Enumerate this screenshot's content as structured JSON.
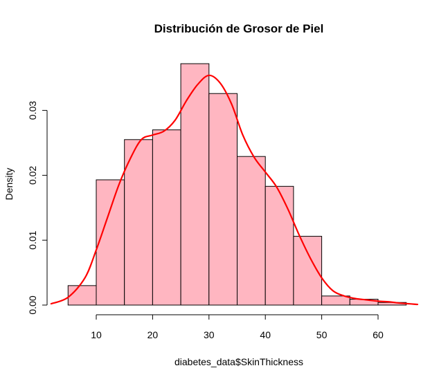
{
  "chart_data": {
    "type": "bar",
    "title": "Distribución de Grosor de Piel",
    "xlabel": "diabetes_data$SkinThickness",
    "ylabel": "Density",
    "bins": [
      {
        "x0": 5,
        "x1": 10,
        "density": 0.003
      },
      {
        "x0": 10,
        "x1": 15,
        "density": 0.0193
      },
      {
        "x0": 15,
        "x1": 20,
        "density": 0.0255
      },
      {
        "x0": 20,
        "x1": 25,
        "density": 0.027
      },
      {
        "x0": 25,
        "x1": 30,
        "density": 0.0372
      },
      {
        "x0": 30,
        "x1": 35,
        "density": 0.0326
      },
      {
        "x0": 35,
        "x1": 40,
        "density": 0.0229
      },
      {
        "x0": 40,
        "x1": 45,
        "density": 0.0183
      },
      {
        "x0": 45,
        "x1": 50,
        "density": 0.0106
      },
      {
        "x0": 50,
        "x1": 55,
        "density": 0.0014
      },
      {
        "x0": 55,
        "x1": 60,
        "density": 0.0009
      },
      {
        "x0": 60,
        "x1": 65,
        "density": 0.0004
      }
    ],
    "density_curve": {
      "color": "#ff0000",
      "x": [
        2,
        5,
        8,
        10,
        12,
        14,
        16,
        18,
        20,
        22,
        24,
        26,
        28,
        30,
        32,
        34,
        36,
        38,
        40,
        42,
        44,
        46,
        48,
        50,
        52,
        54,
        56,
        58,
        60,
        62,
        64,
        67
      ],
      "y": [
        0.0002,
        0.0012,
        0.0042,
        0.0085,
        0.0135,
        0.0185,
        0.0225,
        0.0255,
        0.0262,
        0.0268,
        0.0285,
        0.0315,
        0.034,
        0.0354,
        0.0342,
        0.031,
        0.0262,
        0.0228,
        0.0205,
        0.0182,
        0.0148,
        0.0108,
        0.0072,
        0.0042,
        0.0022,
        0.0014,
        0.001,
        0.0008,
        0.0006,
        0.0005,
        0.0003,
        0.0001
      ]
    },
    "bar_fill": "#ffb6c1",
    "bar_stroke": "#000000",
    "x_ticks": [
      10,
      20,
      30,
      40,
      50,
      60
    ],
    "y_ticks": [
      0.0,
      0.01,
      0.02,
      0.03
    ],
    "y_tick_labels": [
      "0.00",
      "0.01",
      "0.02",
      "0.03"
    ],
    "xlim": [
      5,
      65
    ],
    "ylim": [
      0,
      0.0372
    ],
    "grid": false,
    "legend": "none"
  }
}
